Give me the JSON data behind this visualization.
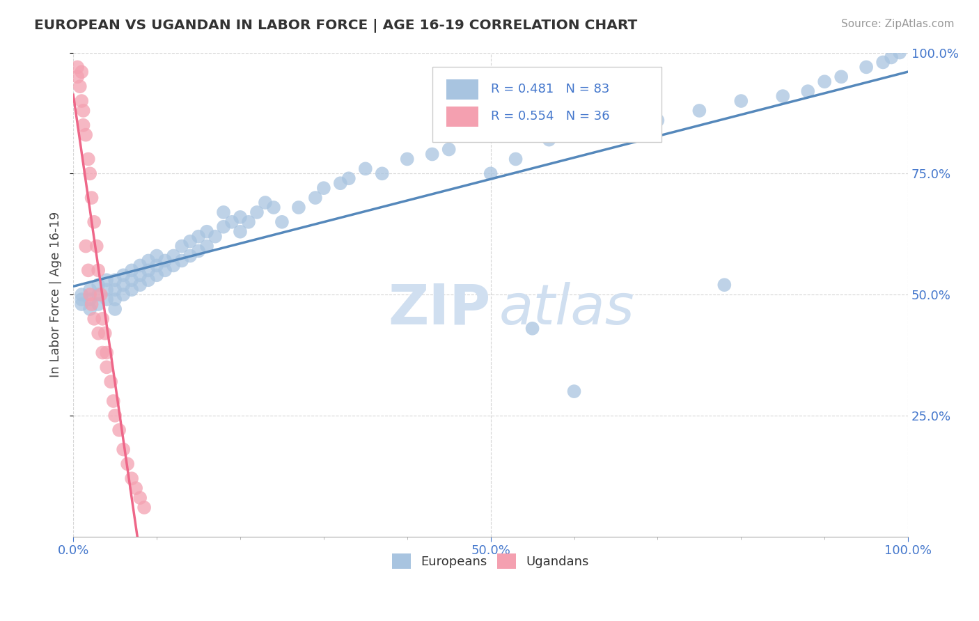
{
  "title": "EUROPEAN VS UGANDAN IN LABOR FORCE | AGE 16-19 CORRELATION CHART",
  "source": "Source: ZipAtlas.com",
  "ylabel": "In Labor Force | Age 16-19",
  "xlim": [
    0.0,
    1.0
  ],
  "ylim": [
    0.0,
    1.0
  ],
  "european_R": 0.481,
  "european_N": 83,
  "ugandan_R": 0.554,
  "ugandan_N": 36,
  "european_color": "#a8c4e0",
  "ugandan_color": "#f4a0b0",
  "european_line_color": "#5588bb",
  "ugandan_line_color": "#ee6688",
  "legend_text_color": "#4477cc",
  "watermark_color": "#d0dff0",
  "background_color": "#ffffff",
  "grid_color": "#cccccc",
  "europeans_x": [
    0.01,
    0.01,
    0.01,
    0.02,
    0.02,
    0.02,
    0.03,
    0.03,
    0.03,
    0.04,
    0.04,
    0.04,
    0.05,
    0.05,
    0.05,
    0.05,
    0.06,
    0.06,
    0.06,
    0.07,
    0.07,
    0.07,
    0.08,
    0.08,
    0.08,
    0.09,
    0.09,
    0.09,
    0.1,
    0.1,
    0.1,
    0.11,
    0.11,
    0.12,
    0.12,
    0.13,
    0.13,
    0.14,
    0.14,
    0.15,
    0.15,
    0.16,
    0.16,
    0.17,
    0.18,
    0.18,
    0.19,
    0.2,
    0.2,
    0.21,
    0.22,
    0.23,
    0.24,
    0.25,
    0.27,
    0.29,
    0.3,
    0.32,
    0.33,
    0.35,
    0.37,
    0.4,
    0.43,
    0.45,
    0.5,
    0.53,
    0.57,
    0.63,
    0.65,
    0.7,
    0.75,
    0.8,
    0.85,
    0.88,
    0.9,
    0.92,
    0.95,
    0.97,
    0.98,
    0.99,
    0.55,
    0.6,
    0.78
  ],
  "europeans_y": [
    0.48,
    0.49,
    0.5,
    0.47,
    0.49,
    0.51,
    0.48,
    0.5,
    0.52,
    0.49,
    0.51,
    0.53,
    0.47,
    0.49,
    0.51,
    0.53,
    0.5,
    0.52,
    0.54,
    0.51,
    0.53,
    0.55,
    0.52,
    0.54,
    0.56,
    0.53,
    0.55,
    0.57,
    0.54,
    0.56,
    0.58,
    0.55,
    0.57,
    0.56,
    0.58,
    0.57,
    0.6,
    0.58,
    0.61,
    0.59,
    0.62,
    0.6,
    0.63,
    0.62,
    0.64,
    0.67,
    0.65,
    0.63,
    0.66,
    0.65,
    0.67,
    0.69,
    0.68,
    0.65,
    0.68,
    0.7,
    0.72,
    0.73,
    0.74,
    0.76,
    0.75,
    0.78,
    0.79,
    0.8,
    0.75,
    0.78,
    0.82,
    0.83,
    0.85,
    0.86,
    0.88,
    0.9,
    0.91,
    0.92,
    0.94,
    0.95,
    0.97,
    0.98,
    0.99,
    1.0,
    0.43,
    0.3,
    0.52
  ],
  "ugandans_x": [
    0.005,
    0.005,
    0.008,
    0.01,
    0.01,
    0.012,
    0.012,
    0.015,
    0.015,
    0.018,
    0.018,
    0.02,
    0.02,
    0.022,
    0.022,
    0.025,
    0.025,
    0.028,
    0.03,
    0.03,
    0.033,
    0.035,
    0.035,
    0.038,
    0.04,
    0.04,
    0.045,
    0.048,
    0.05,
    0.055,
    0.06,
    0.065,
    0.07,
    0.075,
    0.08,
    0.085
  ],
  "ugandans_y": [
    0.97,
    0.95,
    0.93,
    0.96,
    0.9,
    0.88,
    0.85,
    0.83,
    0.6,
    0.78,
    0.55,
    0.75,
    0.5,
    0.7,
    0.48,
    0.65,
    0.45,
    0.6,
    0.55,
    0.42,
    0.5,
    0.45,
    0.38,
    0.42,
    0.38,
    0.35,
    0.32,
    0.28,
    0.25,
    0.22,
    0.18,
    0.15,
    0.12,
    0.1,
    0.08,
    0.06
  ]
}
